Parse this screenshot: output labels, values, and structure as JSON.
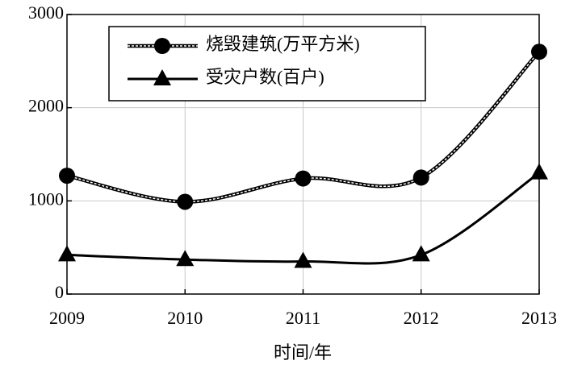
{
  "chart_data": {
    "type": "line",
    "x_label": "时间/年",
    "categories": [
      "2009",
      "2010",
      "2011",
      "2012",
      "2013"
    ],
    "series": [
      {
        "name": "烧毁建筑(万平方米)",
        "color": "#000000",
        "marker": "circle",
        "values": [
          1270,
          990,
          1240,
          1250,
          2600
        ]
      },
      {
        "name": "受灾户数(百户)",
        "color": "#000000",
        "marker": "triangle",
        "values": [
          420,
          370,
          350,
          420,
          1300
        ]
      }
    ],
    "ylim": [
      0,
      3000
    ],
    "yticks": [
      0,
      1000,
      2000,
      3000
    ],
    "grid": true,
    "legend": "top"
  }
}
